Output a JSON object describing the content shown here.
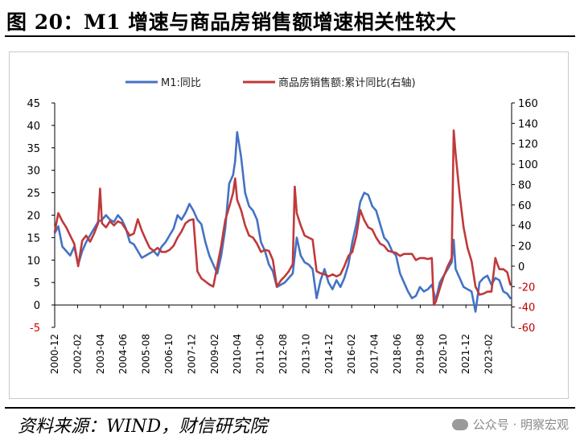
{
  "title": "图 20：M1 增速与商品房销售额增速相关性较大",
  "source": "资料来源：WIND，财信研究院",
  "watermark": "公众号 · 明察宏观",
  "chart_data": {
    "type": "line",
    "legend_position": "top",
    "grid": false,
    "y_left": {
      "min": -5,
      "max": 45,
      "step": 5
    },
    "y_right": {
      "min": -60,
      "max": 160,
      "step": 20
    },
    "x_range": [
      2000.917,
      2023.917
    ],
    "x_tick_labels": [
      "2000-12",
      "2002-02",
      "2003-04",
      "2004-06",
      "2005-08",
      "2006-10",
      "2007-12",
      "2009-02",
      "2010-04",
      "2011-06",
      "2012-08",
      "2013-10",
      "2014-12",
      "2016-02",
      "2017-04",
      "2018-06",
      "2019-08",
      "2020-10",
      "2021-12",
      "2023-02"
    ],
    "series": [
      {
        "name": "M1:同比",
        "axis": "left",
        "color": "#4472c4",
        "points": [
          [
            2000.92,
            16
          ],
          [
            2001.1,
            17.5
          ],
          [
            2001.3,
            13
          ],
          [
            2001.5,
            12
          ],
          [
            2001.7,
            11
          ],
          [
            2001.9,
            13
          ],
          [
            2002.1,
            9
          ],
          [
            2002.3,
            12
          ],
          [
            2002.5,
            14
          ],
          [
            2002.7,
            15.5
          ],
          [
            2002.9,
            17
          ],
          [
            2003.1,
            18.5
          ],
          [
            2003.3,
            19
          ],
          [
            2003.5,
            20
          ],
          [
            2003.7,
            19
          ],
          [
            2003.9,
            18.5
          ],
          [
            2004.1,
            20
          ],
          [
            2004.3,
            19
          ],
          [
            2004.5,
            17
          ],
          [
            2004.7,
            14
          ],
          [
            2004.9,
            13.5
          ],
          [
            2005.1,
            12
          ],
          [
            2005.3,
            10.5
          ],
          [
            2005.5,
            11
          ],
          [
            2005.7,
            11.5
          ],
          [
            2005.9,
            12
          ],
          [
            2006.1,
            11
          ],
          [
            2006.3,
            13
          ],
          [
            2006.5,
            14
          ],
          [
            2006.7,
            15.5
          ],
          [
            2006.9,
            17
          ],
          [
            2007.1,
            20
          ],
          [
            2007.3,
            19
          ],
          [
            2007.5,
            20.5
          ],
          [
            2007.7,
            22.5
          ],
          [
            2007.9,
            21
          ],
          [
            2008.1,
            19
          ],
          [
            2008.3,
            18
          ],
          [
            2008.5,
            14
          ],
          [
            2008.7,
            11
          ],
          [
            2008.9,
            9
          ],
          [
            2009.1,
            7
          ],
          [
            2009.3,
            11
          ],
          [
            2009.5,
            17
          ],
          [
            2009.7,
            27
          ],
          [
            2009.9,
            29
          ],
          [
            2010.0,
            32
          ],
          [
            2010.1,
            38.5
          ],
          [
            2010.3,
            33
          ],
          [
            2010.5,
            25
          ],
          [
            2010.7,
            22
          ],
          [
            2010.9,
            21
          ],
          [
            2011.1,
            19
          ],
          [
            2011.3,
            14
          ],
          [
            2011.5,
            12
          ],
          [
            2011.7,
            9
          ],
          [
            2011.9,
            7.5
          ],
          [
            2012.1,
            4
          ],
          [
            2012.3,
            4.5
          ],
          [
            2012.5,
            5
          ],
          [
            2012.7,
            6
          ],
          [
            2012.9,
            7
          ],
          [
            2013.1,
            15
          ],
          [
            2013.3,
            11
          ],
          [
            2013.5,
            9.5
          ],
          [
            2013.7,
            9
          ],
          [
            2013.9,
            8
          ],
          [
            2014.1,
            1.5
          ],
          [
            2014.3,
            5.5
          ],
          [
            2014.5,
            8
          ],
          [
            2014.7,
            5
          ],
          [
            2014.9,
            3.5
          ],
          [
            2015.1,
            5.5
          ],
          [
            2015.3,
            4
          ],
          [
            2015.5,
            6
          ],
          [
            2015.7,
            9
          ],
          [
            2015.9,
            14
          ],
          [
            2016.1,
            18
          ],
          [
            2016.3,
            23
          ],
          [
            2016.5,
            25
          ],
          [
            2016.7,
            24.5
          ],
          [
            2016.9,
            22
          ],
          [
            2017.1,
            21
          ],
          [
            2017.3,
            18
          ],
          [
            2017.5,
            15
          ],
          [
            2017.7,
            14
          ],
          [
            2017.9,
            12
          ],
          [
            2018.1,
            11
          ],
          [
            2018.3,
            7
          ],
          [
            2018.5,
            5
          ],
          [
            2018.7,
            3
          ],
          [
            2018.9,
            1.5
          ],
          [
            2019.1,
            2
          ],
          [
            2019.3,
            4
          ],
          [
            2019.5,
            3
          ],
          [
            2019.7,
            3.5
          ],
          [
            2019.9,
            4.5
          ],
          [
            2020.1,
            1
          ],
          [
            2020.3,
            5
          ],
          [
            2020.5,
            6.5
          ],
          [
            2020.7,
            8
          ],
          [
            2020.9,
            9.5
          ],
          [
            2021.0,
            14.5
          ],
          [
            2021.1,
            8
          ],
          [
            2021.3,
            6
          ],
          [
            2021.5,
            4
          ],
          [
            2021.7,
            3.5
          ],
          [
            2021.9,
            3
          ],
          [
            2022.1,
            -1.5
          ],
          [
            2022.3,
            5
          ],
          [
            2022.5,
            6
          ],
          [
            2022.7,
            6.5
          ],
          [
            2022.9,
            4.5
          ],
          [
            2023.1,
            6
          ],
          [
            2023.3,
            5.5
          ],
          [
            2023.5,
            3
          ],
          [
            2023.7,
            2.5
          ],
          [
            2023.85,
            1.5
          ]
        ]
      },
      {
        "name": "商品房销售额:累计同比(右轴)",
        "axis": "right",
        "color": "#c0393b",
        "points": [
          [
            2000.92,
            34
          ],
          [
            2001.1,
            52
          ],
          [
            2001.3,
            44
          ],
          [
            2001.5,
            38
          ],
          [
            2001.7,
            30
          ],
          [
            2001.9,
            22
          ],
          [
            2002.1,
            0
          ],
          [
            2002.3,
            25
          ],
          [
            2002.5,
            30
          ],
          [
            2002.7,
            24
          ],
          [
            2002.9,
            32
          ],
          [
            2003.1,
            42
          ],
          [
            2003.2,
            76
          ],
          [
            2003.3,
            42
          ],
          [
            2003.5,
            38
          ],
          [
            2003.7,
            44
          ],
          [
            2003.9,
            40
          ],
          [
            2004.1,
            44
          ],
          [
            2004.3,
            42
          ],
          [
            2004.5,
            36
          ],
          [
            2004.7,
            30
          ],
          [
            2004.9,
            32
          ],
          [
            2005.1,
            46
          ],
          [
            2005.3,
            35
          ],
          [
            2005.5,
            26
          ],
          [
            2005.7,
            18
          ],
          [
            2005.9,
            15
          ],
          [
            2006.1,
            18
          ],
          [
            2006.3,
            14
          ],
          [
            2006.5,
            14
          ],
          [
            2006.7,
            16
          ],
          [
            2006.9,
            20
          ],
          [
            2007.1,
            28
          ],
          [
            2007.3,
            34
          ],
          [
            2007.5,
            42
          ],
          [
            2007.7,
            45
          ],
          [
            2007.9,
            46
          ],
          [
            2008.1,
            -5
          ],
          [
            2008.3,
            -12
          ],
          [
            2008.5,
            -15
          ],
          [
            2008.7,
            -18
          ],
          [
            2008.9,
            -20
          ],
          [
            2009.1,
            0
          ],
          [
            2009.3,
            20
          ],
          [
            2009.5,
            45
          ],
          [
            2009.7,
            58
          ],
          [
            2009.9,
            72
          ],
          [
            2010.0,
            86
          ],
          [
            2010.1,
            65
          ],
          [
            2010.3,
            55
          ],
          [
            2010.5,
            40
          ],
          [
            2010.7,
            30
          ],
          [
            2010.9,
            28
          ],
          [
            2011.1,
            22
          ],
          [
            2011.3,
            14
          ],
          [
            2011.5,
            16
          ],
          [
            2011.7,
            15
          ],
          [
            2011.9,
            6
          ],
          [
            2012.1,
            -20
          ],
          [
            2012.3,
            -14
          ],
          [
            2012.5,
            -10
          ],
          [
            2012.7,
            -5
          ],
          [
            2012.9,
            2
          ],
          [
            2013.0,
            78
          ],
          [
            2013.1,
            52
          ],
          [
            2013.3,
            40
          ],
          [
            2013.5,
            30
          ],
          [
            2013.7,
            28
          ],
          [
            2013.9,
            26
          ],
          [
            2014.1,
            -5
          ],
          [
            2014.3,
            -7
          ],
          [
            2014.5,
            -8
          ],
          [
            2014.7,
            -10
          ],
          [
            2014.9,
            -8
          ],
          [
            2015.1,
            -10
          ],
          [
            2015.3,
            -8
          ],
          [
            2015.5,
            0
          ],
          [
            2015.7,
            10
          ],
          [
            2015.9,
            14
          ],
          [
            2016.1,
            30
          ],
          [
            2016.3,
            55
          ],
          [
            2016.5,
            45
          ],
          [
            2016.7,
            38
          ],
          [
            2016.9,
            36
          ],
          [
            2017.1,
            28
          ],
          [
            2017.3,
            22
          ],
          [
            2017.5,
            20
          ],
          [
            2017.7,
            15
          ],
          [
            2017.9,
            14
          ],
          [
            2018.1,
            13
          ],
          [
            2018.3,
            10
          ],
          [
            2018.5,
            12
          ],
          [
            2018.7,
            12
          ],
          [
            2018.9,
            12
          ],
          [
            2019.1,
            6
          ],
          [
            2019.3,
            8
          ],
          [
            2019.5,
            8
          ],
          [
            2019.7,
            7
          ],
          [
            2019.9,
            8
          ],
          [
            2020.0,
            -38
          ],
          [
            2020.1,
            -35
          ],
          [
            2020.3,
            -22
          ],
          [
            2020.5,
            -10
          ],
          [
            2020.7,
            0
          ],
          [
            2020.9,
            8
          ],
          [
            2021.0,
            133
          ],
          [
            2021.1,
            110
          ],
          [
            2021.3,
            70
          ],
          [
            2021.5,
            38
          ],
          [
            2021.7,
            18
          ],
          [
            2021.9,
            5
          ],
          [
            2022.1,
            -20
          ],
          [
            2022.3,
            -28
          ],
          [
            2022.5,
            -27
          ],
          [
            2022.7,
            -25
          ],
          [
            2022.9,
            -25
          ],
          [
            2023.1,
            8
          ],
          [
            2023.2,
            2
          ],
          [
            2023.3,
            -3
          ],
          [
            2023.5,
            -3
          ],
          [
            2023.7,
            -6
          ],
          [
            2023.85,
            -18
          ]
        ]
      }
    ]
  }
}
